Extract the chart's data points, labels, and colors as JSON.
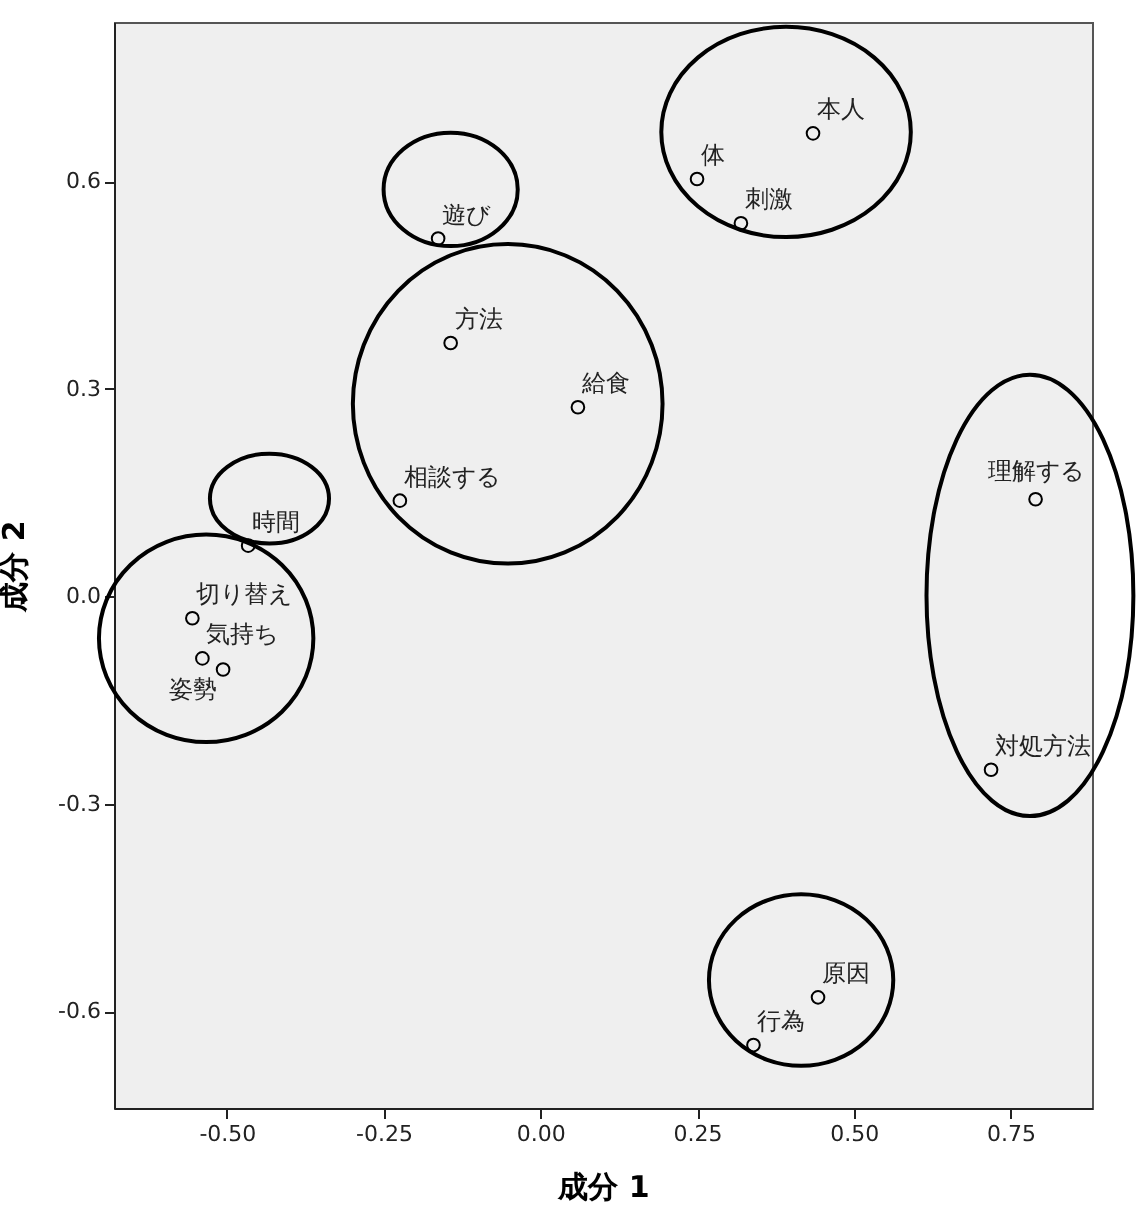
{
  "chart_data": {
    "type": "scatter",
    "xlabel": "成分 1",
    "ylabel": "成分 2",
    "x": [
      0.435,
      0.25,
      0.32,
      -0.163,
      -0.143,
      0.06,
      -0.224,
      -0.466,
      0.79,
      -0.555,
      -0.539,
      -0.506,
      0.719,
      0.443,
      0.34
    ],
    "series": [
      {
        "color": "#000000",
        "values": [
          0.669,
          0.603,
          0.539,
          0.517,
          0.366,
          0.273,
          0.138,
          0.073,
          0.14,
          -0.032,
          -0.09,
          -0.106,
          -0.251,
          -0.58,
          -0.649
        ]
      }
    ],
    "annotations": [
      {
        "text": "本人",
        "x": 0.435,
        "y": 0.669
      },
      {
        "text": "体",
        "x": 0.25,
        "y": 0.603
      },
      {
        "text": "刺激",
        "x": 0.32,
        "y": 0.539
      },
      {
        "text": "遊び",
        "x": -0.163,
        "y": 0.517
      },
      {
        "text": "方法",
        "x": -0.143,
        "y": 0.366
      },
      {
        "text": "給食",
        "x": 0.06,
        "y": 0.273
      },
      {
        "text": "相談する",
        "x": -0.224,
        "y": 0.138
      },
      {
        "text": "時間",
        "x": -0.466,
        "y": 0.073
      },
      {
        "text": "理解する",
        "x": 0.79,
        "y": 0.14
      },
      {
        "text": "切り替え",
        "x": -0.555,
        "y": -0.032
      },
      {
        "text": "気持ち",
        "x": -0.539,
        "y": -0.09
      },
      {
        "text": "姿勢",
        "x": -0.506,
        "y": -0.106
      },
      {
        "text": "対処方法",
        "x": 0.719,
        "y": -0.251
      },
      {
        "text": "原因",
        "x": 0.443,
        "y": -0.58
      },
      {
        "text": "行為",
        "x": 0.34,
        "y": -0.649
      }
    ],
    "xlim": [
      -0.68,
      0.88
    ],
    "ylim": [
      -0.74,
      0.83
    ],
    "xticks": [
      {
        "value": -0.5,
        "label": "-0.50"
      },
      {
        "value": -0.25,
        "label": "-0.25"
      },
      {
        "value": 0,
        "label": "0.00"
      },
      {
        "value": 0.25,
        "label": "0.25"
      },
      {
        "value": 0.5,
        "label": "0.50"
      },
      {
        "value": 0.75,
        "label": "0.75"
      }
    ],
    "yticks": [
      -0.6,
      -0.3,
      {
        "value": 0,
        "label": "0.0"
      },
      0.3,
      0.6
    ],
    "grid": false,
    "marker": "circle"
  }
}
